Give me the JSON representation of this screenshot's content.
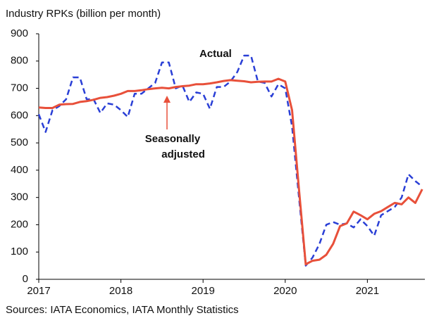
{
  "chart_data": {
    "type": "line",
    "title": "Industry RPKs (billion per month)",
    "source": "Sources: IATA Economics, IATA Monthly Statistics",
    "x": [
      2017,
      2017.083,
      2017.167,
      2017.25,
      2017.333,
      2017.417,
      2017.5,
      2017.583,
      2017.667,
      2017.75,
      2017.833,
      2017.917,
      2018,
      2018.083,
      2018.167,
      2018.25,
      2018.333,
      2018.417,
      2018.5,
      2018.583,
      2018.667,
      2018.75,
      2018.833,
      2018.917,
      2019,
      2019.083,
      2019.167,
      2019.25,
      2019.333,
      2019.417,
      2019.5,
      2019.583,
      2019.667,
      2019.75,
      2019.833,
      2019.917,
      2020,
      2020.083,
      2020.167,
      2020.25,
      2020.333,
      2020.417,
      2020.5,
      2020.583,
      2020.667,
      2020.75,
      2020.833,
      2020.917,
      2021,
      2021.083,
      2021.167,
      2021.25,
      2021.333,
      2021.417,
      2021.5,
      2021.583,
      2021.667
    ],
    "series": [
      {
        "name": "Actual",
        "color": "#2a3fd6",
        "dashed": true,
        "values": [
          605,
          540,
          620,
          635,
          660,
          740,
          740,
          660,
          660,
          610,
          645,
          640,
          620,
          595,
          680,
          680,
          700,
          720,
          795,
          795,
          700,
          710,
          650,
          685,
          680,
          625,
          705,
          705,
          725,
          760,
          820,
          820,
          725,
          720,
          670,
          715,
          700,
          560,
          300,
          50,
          80,
          130,
          200,
          210,
          200,
          205,
          190,
          220,
          195,
          160,
          235,
          250,
          265,
          300,
          385,
          360,
          340
        ]
      },
      {
        "name": "Seasonally adjusted",
        "color": "#e8503a",
        "dashed": false,
        "values": [
          630,
          628,
          628,
          640,
          642,
          643,
          650,
          653,
          658,
          665,
          668,
          673,
          680,
          690,
          690,
          693,
          697,
          700,
          702,
          700,
          705,
          708,
          710,
          715,
          715,
          718,
          722,
          727,
          730,
          728,
          726,
          722,
          724,
          725,
          725,
          735,
          725,
          620,
          330,
          55,
          68,
          72,
          90,
          130,
          195,
          205,
          248,
          235,
          220,
          240,
          250,
          265,
          280,
          275,
          300,
          280,
          330
        ]
      }
    ],
    "xlim": [
      2017,
      2021.7
    ],
    "xticks": [
      2017,
      2018,
      2019,
      2020,
      2021
    ],
    "ylim": [
      0,
      900
    ],
    "yticks": [
      0,
      100,
      200,
      300,
      400,
      500,
      600,
      700,
      800,
      900
    ],
    "grid": false
  }
}
